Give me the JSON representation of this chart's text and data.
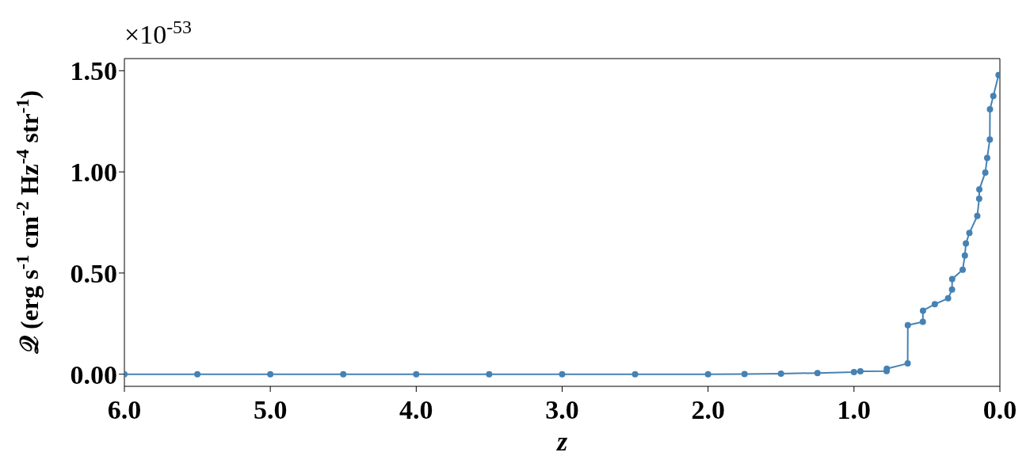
{
  "chart_data": {
    "type": "line",
    "xlabel": "z",
    "ylabel": "𝒬 (erg s$^{-1}$ cm$^{-2}$ Hz$^{-4}$ str$^{-1}$)",
    "annotations": [
      "×10$^{-53}$"
    ],
    "x": [
      6.0,
      5.5,
      5.0,
      4.5,
      4.0,
      3.5,
      3.0,
      2.5,
      2.0,
      1.75,
      1.5,
      1.25,
      1.0,
      0.956,
      0.776,
      0.775,
      0.632,
      0.631,
      0.528,
      0.527,
      0.446,
      0.355,
      0.328,
      0.327,
      0.255,
      0.24,
      0.233,
      0.209,
      0.155,
      0.142,
      0.141,
      0.1,
      0.087,
      0.069,
      0.068,
      0.045,
      0.009
    ],
    "series": [
      {
        "color": "#4682b4",
        "values": [
          0,
          0,
          0,
          0,
          0,
          0,
          0,
          0,
          0,
          0.001,
          0.003,
          0.006,
          0.01,
          0.014,
          0.015,
          0.027,
          0.053,
          0.242,
          0.259,
          0.314,
          0.346,
          0.375,
          0.418,
          0.47,
          0.516,
          0.587,
          0.646,
          0.698,
          0.782,
          0.867,
          0.913,
          0.997,
          1.069,
          1.16,
          1.31,
          1.375,
          1.479
        ]
      }
    ],
    "xlim": [
      6.0,
      0.0
    ],
    "xticks": [
      {
        "value": 6,
        "label": "6.0"
      },
      {
        "value": 5,
        "label": "5.0"
      },
      {
        "value": 4,
        "label": "4.0"
      },
      {
        "value": 3,
        "label": "3.0"
      },
      {
        "value": 2,
        "label": "2.0"
      },
      {
        "value": 1,
        "label": "1.0"
      },
      {
        "value": 0,
        "label": "0.0"
      }
    ],
    "ylim": [
      -0.06,
      1.56
    ],
    "yticks": [
      {
        "value": 0,
        "label": "0.00"
      },
      {
        "value": 0.5,
        "label": "0.50"
      },
      {
        "value": 1,
        "label": "1.00"
      },
      {
        "value": 1.5,
        "label": "1.50"
      }
    ],
    "marker": "circle",
    "line_style": "solid",
    "grid": false,
    "legend": false
  }
}
